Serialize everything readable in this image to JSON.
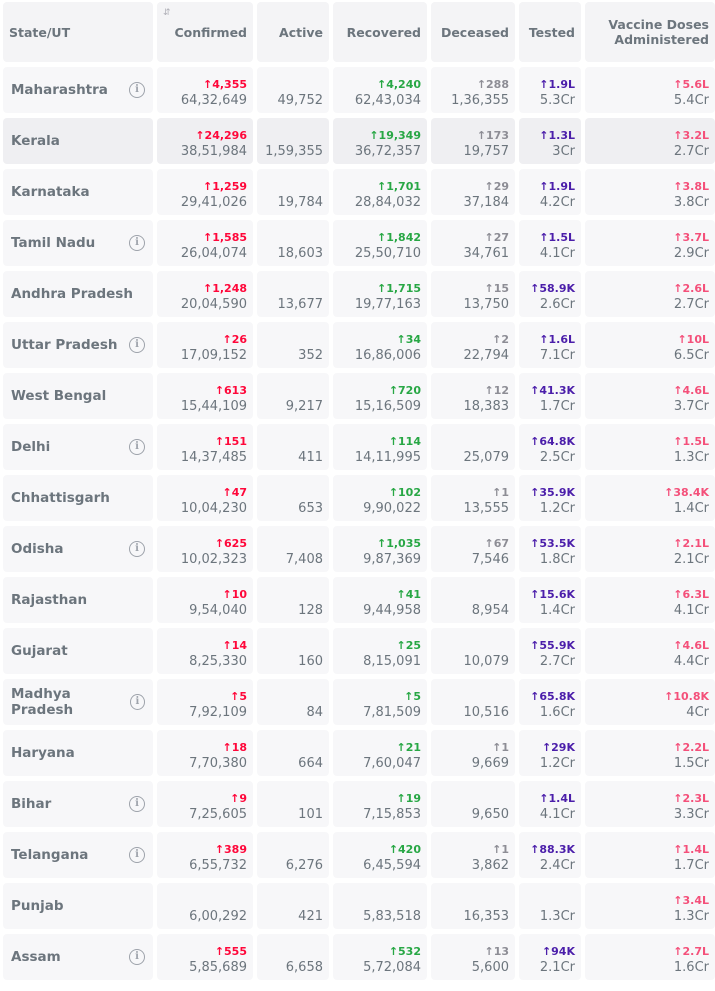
{
  "headers": {
    "state": "State/UT",
    "confirmed": "Confirmed",
    "active": "Active",
    "recovered": "Recovered",
    "deceased": "Deceased",
    "tested": "Tested",
    "vaccine": "Vaccine Doses Administered"
  },
  "arrow": "↑",
  "info_glyph": "i",
  "sort_glyph": "⇵",
  "rows": [
    {
      "name": "Maharashtra",
      "info": true,
      "confirmed_delta": "4,355",
      "confirmed": "64,32,649",
      "active": "49,752",
      "recovered_delta": "4,240",
      "recovered": "62,43,034",
      "deceased_delta": "288",
      "deceased": "1,36,355",
      "tested_delta": "1.9L",
      "tested": "5.3Cr",
      "vaccine_delta": "5.6L",
      "vaccine": "5.4Cr"
    },
    {
      "name": "Kerala",
      "info": false,
      "highlight": true,
      "confirmed_delta": "24,296",
      "confirmed": "38,51,984",
      "active": "1,59,355",
      "recovered_delta": "19,349",
      "recovered": "36,72,357",
      "deceased_delta": "173",
      "deceased": "19,757",
      "tested_delta": "1.3L",
      "tested": "3Cr",
      "vaccine_delta": "3.2L",
      "vaccine": "2.7Cr"
    },
    {
      "name": "Karnataka",
      "info": false,
      "confirmed_delta": "1,259",
      "confirmed": "29,41,026",
      "active": "19,784",
      "recovered_delta": "1,701",
      "recovered": "28,84,032",
      "deceased_delta": "29",
      "deceased": "37,184",
      "tested_delta": "1.9L",
      "tested": "4.2Cr",
      "vaccine_delta": "3.8L",
      "vaccine": "3.8Cr"
    },
    {
      "name": "Tamil Nadu",
      "info": true,
      "confirmed_delta": "1,585",
      "confirmed": "26,04,074",
      "active": "18,603",
      "recovered_delta": "1,842",
      "recovered": "25,50,710",
      "deceased_delta": "27",
      "deceased": "34,761",
      "tested_delta": "1.5L",
      "tested": "4.1Cr",
      "vaccine_delta": "3.7L",
      "vaccine": "2.9Cr"
    },
    {
      "name": "Andhra Pradesh",
      "info": false,
      "confirmed_delta": "1,248",
      "confirmed": "20,04,590",
      "active": "13,677",
      "recovered_delta": "1,715",
      "recovered": "19,77,163",
      "deceased_delta": "15",
      "deceased": "13,750",
      "tested_delta": "58.9K",
      "tested": "2.6Cr",
      "vaccine_delta": "2.6L",
      "vaccine": "2.7Cr"
    },
    {
      "name": "Uttar Pradesh",
      "info": true,
      "confirmed_delta": "26",
      "confirmed": "17,09,152",
      "active": "352",
      "recovered_delta": "34",
      "recovered": "16,86,006",
      "deceased_delta": "2",
      "deceased": "22,794",
      "tested_delta": "1.6L",
      "tested": "7.1Cr",
      "vaccine_delta": "10L",
      "vaccine": "6.5Cr"
    },
    {
      "name": "West Bengal",
      "info": false,
      "confirmed_delta": "613",
      "confirmed": "15,44,109",
      "active": "9,217",
      "recovered_delta": "720",
      "recovered": "15,16,509",
      "deceased_delta": "12",
      "deceased": "18,383",
      "tested_delta": "41.3K",
      "tested": "1.7Cr",
      "vaccine_delta": "4.6L",
      "vaccine": "3.7Cr"
    },
    {
      "name": "Delhi",
      "info": true,
      "confirmed_delta": "151",
      "confirmed": "14,37,485",
      "active": "411",
      "recovered_delta": "114",
      "recovered": "14,11,995",
      "deceased_delta": "",
      "deceased": "25,079",
      "tested_delta": "64.8K",
      "tested": "2.5Cr",
      "vaccine_delta": "1.5L",
      "vaccine": "1.3Cr"
    },
    {
      "name": "Chhattisgarh",
      "info": false,
      "confirmed_delta": "47",
      "confirmed": "10,04,230",
      "active": "653",
      "recovered_delta": "102",
      "recovered": "9,90,022",
      "deceased_delta": "1",
      "deceased": "13,555",
      "tested_delta": "35.9K",
      "tested": "1.2Cr",
      "vaccine_delta": "38.4K",
      "vaccine": "1.4Cr"
    },
    {
      "name": "Odisha",
      "info": true,
      "confirmed_delta": "625",
      "confirmed": "10,02,323",
      "active": "7,408",
      "recovered_delta": "1,035",
      "recovered": "9,87,369",
      "deceased_delta": "67",
      "deceased": "7,546",
      "tested_delta": "53.5K",
      "tested": "1.8Cr",
      "vaccine_delta": "2.1L",
      "vaccine": "2.1Cr"
    },
    {
      "name": "Rajasthan",
      "info": false,
      "confirmed_delta": "10",
      "confirmed": "9,54,040",
      "active": "128",
      "recovered_delta": "41",
      "recovered": "9,44,958",
      "deceased_delta": "",
      "deceased": "8,954",
      "tested_delta": "15.6K",
      "tested": "1.4Cr",
      "vaccine_delta": "6.3L",
      "vaccine": "4.1Cr"
    },
    {
      "name": "Gujarat",
      "info": false,
      "confirmed_delta": "14",
      "confirmed": "8,25,330",
      "active": "160",
      "recovered_delta": "25",
      "recovered": "8,15,091",
      "deceased_delta": "",
      "deceased": "10,079",
      "tested_delta": "55.9K",
      "tested": "2.7Cr",
      "vaccine_delta": "4.6L",
      "vaccine": "4.4Cr"
    },
    {
      "name": "Madhya Pradesh",
      "info": true,
      "confirmed_delta": "5",
      "confirmed": "7,92,109",
      "active": "84",
      "recovered_delta": "5",
      "recovered": "7,81,509",
      "deceased_delta": "",
      "deceased": "10,516",
      "tested_delta": "65.8K",
      "tested": "1.6Cr",
      "vaccine_delta": "10.8K",
      "vaccine": "4Cr"
    },
    {
      "name": "Haryana",
      "info": false,
      "confirmed_delta": "18",
      "confirmed": "7,70,380",
      "active": "664",
      "recovered_delta": "21",
      "recovered": "7,60,047",
      "deceased_delta": "1",
      "deceased": "9,669",
      "tested_delta": "29K",
      "tested": "1.2Cr",
      "vaccine_delta": "2.2L",
      "vaccine": "1.5Cr"
    },
    {
      "name": "Bihar",
      "info": true,
      "confirmed_delta": "9",
      "confirmed": "7,25,605",
      "active": "101",
      "recovered_delta": "19",
      "recovered": "7,15,853",
      "deceased_delta": "",
      "deceased": "9,650",
      "tested_delta": "1.4L",
      "tested": "4.1Cr",
      "vaccine_delta": "2.3L",
      "vaccine": "3.3Cr"
    },
    {
      "name": "Telangana",
      "info": true,
      "confirmed_delta": "389",
      "confirmed": "6,55,732",
      "active": "6,276",
      "recovered_delta": "420",
      "recovered": "6,45,594",
      "deceased_delta": "1",
      "deceased": "3,862",
      "tested_delta": "88.3K",
      "tested": "2.4Cr",
      "vaccine_delta": "1.4L",
      "vaccine": "1.7Cr"
    },
    {
      "name": "Punjab",
      "info": false,
      "confirmed_delta": "",
      "confirmed": "6,00,292",
      "active": "421",
      "recovered_delta": "",
      "recovered": "5,83,518",
      "deceased_delta": "",
      "deceased": "16,353",
      "tested_delta": "",
      "tested": "1.3Cr",
      "vaccine_delta": "3.4L",
      "vaccine": "1.3Cr"
    },
    {
      "name": "Assam",
      "info": true,
      "confirmed_delta": "555",
      "confirmed": "5,85,689",
      "active": "6,658",
      "recovered_delta": "532",
      "recovered": "5,72,084",
      "deceased_delta": "13",
      "deceased": "5,600",
      "tested_delta": "94K",
      "tested": "2.1Cr",
      "vaccine_delta": "2.7L",
      "vaccine": "1.6Cr"
    }
  ]
}
